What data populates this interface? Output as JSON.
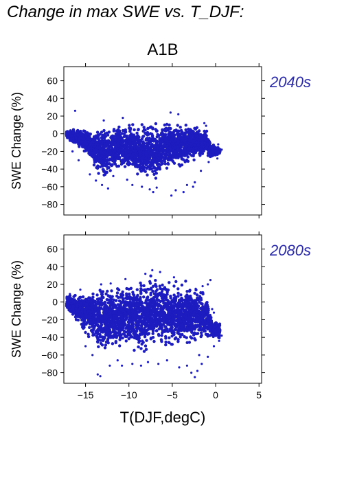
{
  "figure": {
    "title": "Change in max SWE vs. T_DJF:"
  },
  "colors": {
    "points": "#1c1cc0",
    "period_label": "#2a2aaa"
  },
  "chart_data": [
    {
      "type": "scatter",
      "title": "A1B",
      "period": "2040s",
      "xlabel": "",
      "ylabel": "SWE Change (%)",
      "xlim": [
        -17.5,
        5.3
      ],
      "ylim": [
        -92,
        76
      ],
      "xticks": [
        -15,
        -10,
        -5,
        0,
        5
      ],
      "yticks": [
        -80,
        -60,
        -40,
        -20,
        0,
        20,
        40,
        60
      ],
      "ytick_labels": [
        "−80",
        "−60",
        "−40",
        "−20",
        "0",
        "20",
        "40",
        "60"
      ],
      "show_xtick_labels": false,
      "grid": false,
      "cloud": [
        [
          -17.2,
          -5,
          4
        ],
        [
          -16,
          -16,
          8
        ],
        [
          -15,
          -24,
          8
        ],
        [
          -14,
          -42,
          8
        ],
        [
          -13.5,
          -48,
          9
        ],
        [
          -13,
          -52,
          10
        ],
        [
          -12,
          -48,
          12
        ],
        [
          -11,
          -40,
          12
        ],
        [
          -10,
          -45,
          14
        ],
        [
          -9,
          -52,
          15
        ],
        [
          -8,
          -58,
          16
        ],
        [
          -7,
          -55,
          17
        ],
        [
          -6,
          -48,
          17
        ],
        [
          -5,
          -42,
          16
        ],
        [
          -4,
          -38,
          14
        ],
        [
          -3,
          -34,
          12
        ],
        [
          -2,
          -30,
          10
        ],
        [
          -1,
          -26,
          6
        ],
        [
          -0.5,
          -28,
          -10
        ],
        [
          0.5,
          -24,
          -16
        ]
      ],
      "points": [
        [
          -16.2,
          26
        ],
        [
          -5.2,
          24
        ],
        [
          -4.3,
          22
        ],
        [
          -10.7,
          18
        ],
        [
          -12.9,
          15
        ],
        [
          -1.3,
          12
        ],
        [
          -1.1,
          9
        ],
        [
          -13.8,
          -53
        ],
        [
          -13.1,
          -58
        ],
        [
          -12.4,
          -62
        ],
        [
          -11.8,
          -48
        ],
        [
          -14.5,
          -46
        ],
        [
          -10.2,
          -52
        ],
        [
          -8.5,
          -60
        ],
        [
          -7.6,
          -63
        ],
        [
          -7.2,
          -66
        ],
        [
          -6.8,
          -61
        ],
        [
          -5.1,
          -70
        ],
        [
          -4.6,
          -64
        ],
        [
          -3.7,
          -66
        ],
        [
          -3.3,
          -58
        ],
        [
          -2.6,
          -60
        ],
        [
          -2.4,
          -55
        ],
        [
          -1.7,
          -42
        ],
        [
          -0.8,
          -32
        ],
        [
          0.2,
          -28
        ],
        [
          0.4,
          -20
        ],
        [
          0.7,
          -18
        ],
        [
          0.3,
          -12
        ],
        [
          -0.6,
          -22
        ],
        [
          -15.8,
          -30
        ],
        [
          -16.5,
          -20
        ],
        [
          -12.5,
          -40
        ],
        [
          -9.6,
          -58
        ]
      ]
    },
    {
      "type": "scatter",
      "title": "",
      "period": "2080s",
      "xlabel": "T(DJF,degC)",
      "ylabel": "SWE Change (%)",
      "xlim": [
        -17.5,
        5.3
      ],
      "ylim": [
        -92,
        76
      ],
      "xticks": [
        -15,
        -10,
        -5,
        0,
        5
      ],
      "xtick_labels": [
        "−15",
        "−10",
        "−5",
        "0",
        "5"
      ],
      "yticks": [
        -80,
        -60,
        -40,
        -20,
        0,
        20,
        40,
        60
      ],
      "ytick_labels": [
        "−80",
        "−60",
        "−40",
        "−20",
        "0",
        "20",
        "40",
        "60"
      ],
      "show_xtick_labels": true,
      "grid": false,
      "cloud": [
        [
          -17.2,
          -8,
          8
        ],
        [
          -16,
          -24,
          10
        ],
        [
          -15,
          -40,
          16
        ],
        [
          -14,
          -52,
          20
        ],
        [
          -13.5,
          -56,
          21
        ],
        [
          -13,
          -58,
          22
        ],
        [
          -12,
          -58,
          22
        ],
        [
          -11,
          -56,
          24
        ],
        [
          -10,
          -58,
          28
        ],
        [
          -9,
          -62,
          32
        ],
        [
          -8,
          -62,
          34
        ],
        [
          -7,
          -60,
          34
        ],
        [
          -6,
          -58,
          30
        ],
        [
          -5,
          -60,
          28
        ],
        [
          -4,
          -55,
          25
        ],
        [
          -3,
          -52,
          24
        ],
        [
          -2,
          -48,
          20
        ],
        [
          -1,
          -44,
          10
        ],
        [
          -0.3,
          -46,
          -18
        ],
        [
          0.5,
          -42,
          -22
        ]
      ],
      "points": [
        [
          -13.6,
          -82
        ],
        [
          -13.3,
          -84
        ],
        [
          -12.2,
          -72
        ],
        [
          -11.3,
          -66
        ],
        [
          -10.8,
          -72
        ],
        [
          -9.6,
          -70
        ],
        [
          -8.6,
          -72
        ],
        [
          -7.8,
          -68
        ],
        [
          -6.6,
          -70
        ],
        [
          -5.6,
          -66
        ],
        [
          -4.2,
          -74
        ],
        [
          -3.3,
          -72
        ],
        [
          -2.8,
          -80
        ],
        [
          -2.4,
          -85
        ],
        [
          -2.1,
          -78
        ],
        [
          -1.6,
          -70
        ],
        [
          -1.9,
          -60
        ],
        [
          -0.9,
          -62
        ],
        [
          -0.2,
          -50
        ],
        [
          0.4,
          -44
        ],
        [
          0.7,
          -38
        ],
        [
          -0.6,
          -30
        ],
        [
          -0.5,
          -18
        ],
        [
          -0.2,
          -12
        ],
        [
          -0.4,
          -8
        ],
        [
          -0.6,
          25
        ],
        [
          -0.9,
          20
        ],
        [
          -1.5,
          18
        ],
        [
          -2.3,
          15
        ],
        [
          -16.8,
          9
        ],
        [
          -15.6,
          14
        ],
        [
          -13.2,
          20
        ],
        [
          -12.1,
          21
        ],
        [
          -10.4,
          26
        ],
        [
          -8.1,
          32
        ],
        [
          -7.3,
          36
        ],
        [
          -6.4,
          34
        ],
        [
          -4.8,
          28
        ],
        [
          -15.0,
          -50
        ],
        [
          -14.2,
          -60
        ]
      ]
    }
  ]
}
